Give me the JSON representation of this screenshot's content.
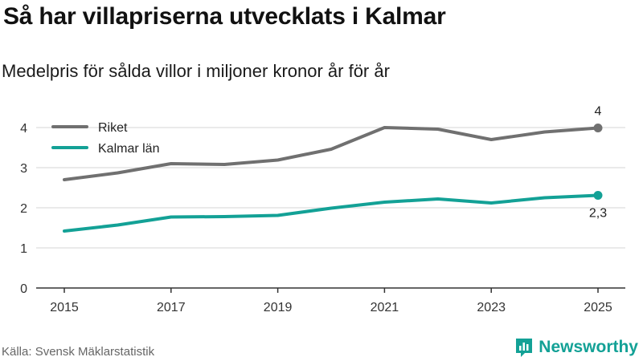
{
  "title": "Så har villapriserna utvecklats i Kalmar",
  "subtitle": "Medelpris för sålda villor i miljoner kronor år för år",
  "source": "Källa: Svensk Mäklarstatistik",
  "brand": {
    "name": "Newsworthy",
    "color": "#13a196",
    "icon": "bar-chart-logo-icon"
  },
  "chart_data": {
    "type": "line",
    "title": "Så har villapriserna utvecklats i Kalmar",
    "subtitle": "Medelpris för sålda villor i miljoner kronor år för år",
    "xlabel": "",
    "ylabel": "",
    "x": [
      2015,
      2016,
      2017,
      2018,
      2019,
      2020,
      2021,
      2022,
      2023,
      2024,
      2025
    ],
    "xlim": [
      2015,
      2025
    ],
    "xticks": [
      "2015",
      "2017",
      "2019",
      "2021",
      "2023",
      "2025"
    ],
    "ylim": [
      0,
      4.2
    ],
    "yticks": [
      "0",
      "1",
      "2",
      "3",
      "4"
    ],
    "grid": true,
    "legend": "top-left",
    "series": [
      {
        "name": "Riket",
        "color": "#707070",
        "values": [
          2.7,
          2.87,
          3.1,
          3.08,
          3.19,
          3.46,
          4.0,
          3.96,
          3.7,
          3.89,
          3.99
        ],
        "end_label": "4",
        "end_label_position": "above"
      },
      {
        "name": "Kalmar län",
        "color": "#13a196",
        "values": [
          1.42,
          1.57,
          1.77,
          1.78,
          1.81,
          1.99,
          2.14,
          2.22,
          2.12,
          2.25,
          2.31
        ],
        "end_label": "2,3",
        "end_label_position": "below"
      }
    ]
  }
}
